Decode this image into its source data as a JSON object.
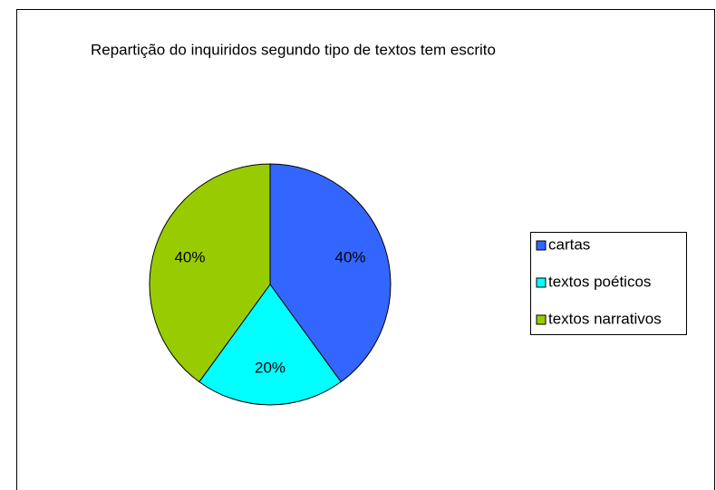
{
  "chart_data": {
    "type": "pie",
    "title": "Repartição do inquiridos segundo tipo de textos tem escrito",
    "categories": [
      "cartas",
      "textos poéticos",
      "textos narrativos"
    ],
    "values": [
      40,
      20,
      40
    ],
    "value_labels": [
      "40%",
      "20%",
      "40%"
    ],
    "colors": [
      "#3366ff",
      "#00ffff",
      "#99cc00"
    ],
    "legend": "right"
  }
}
